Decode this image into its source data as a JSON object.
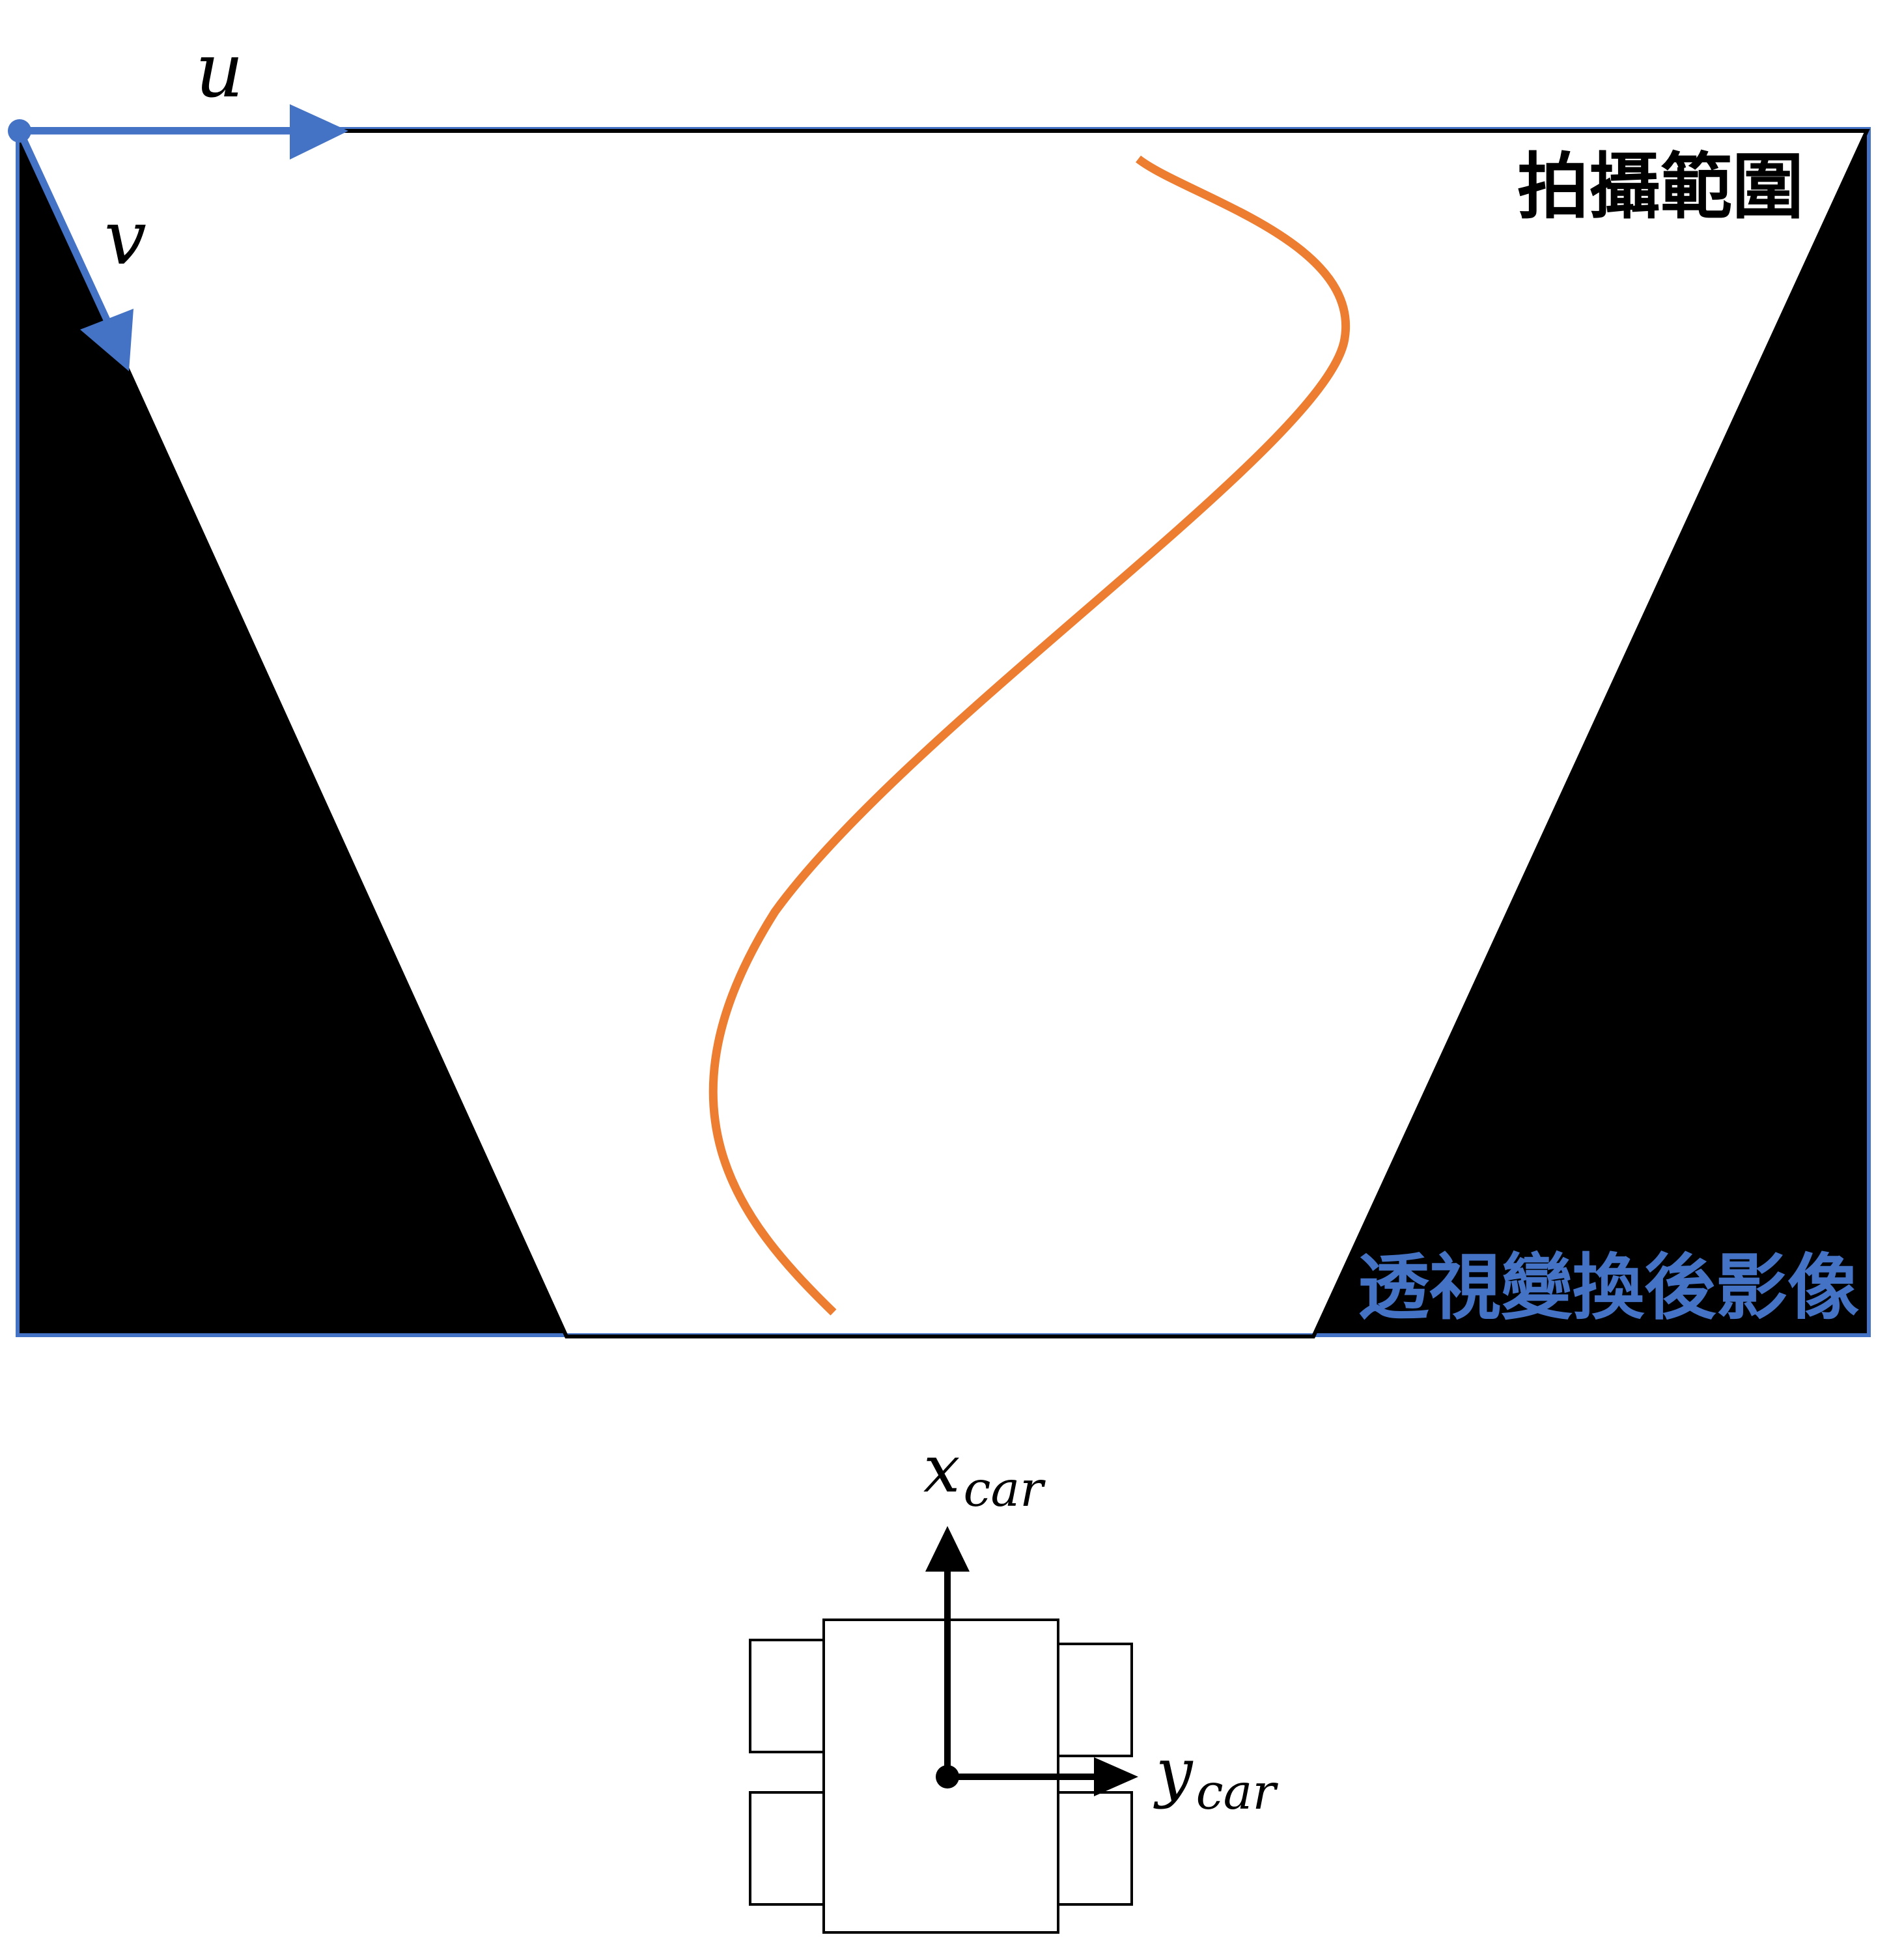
{
  "labels": {
    "u": "u",
    "v": "v",
    "capture_range": "拍攝範圍",
    "transformed_image": "透視變換後影像",
    "x_main": "x",
    "x_sub": "car",
    "y_main": "y",
    "y_sub": "car"
  },
  "colors": {
    "image_border": "#4472C4",
    "axis_blue": "#4472C4",
    "lane_line": "#ED7D31",
    "black_region": "#000000",
    "car_stroke": "#000000"
  }
}
